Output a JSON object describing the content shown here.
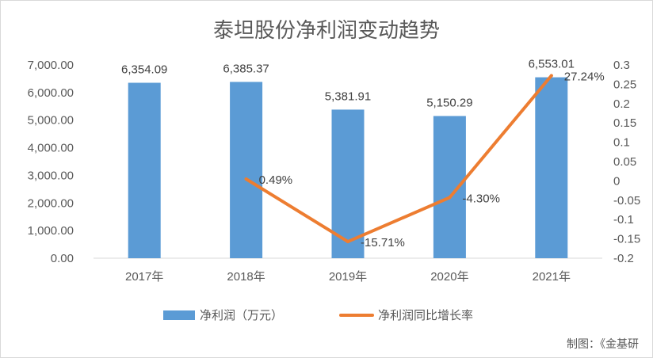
{
  "chart_data": {
    "type": "bar",
    "title": "泰坦股份净利润变动趋势",
    "categories": [
      "2017年",
      "2018年",
      "2019年",
      "2020年",
      "2021年"
    ],
    "series": [
      {
        "name": "净利润（万元）",
        "type": "bar",
        "axis": "left",
        "values": [
          6354.09,
          6385.37,
          5381.91,
          5150.29,
          6553.01
        ],
        "labels": [
          "6,354.09",
          "6,385.37",
          "5,381.91",
          "5,150.29",
          "6,553.01"
        ],
        "color": "#5b9bd5"
      },
      {
        "name": "净利润同比增长率",
        "type": "line",
        "axis": "right",
        "values": [
          null,
          0.0049,
          -0.1571,
          -0.043,
          0.2724
        ],
        "labels": [
          "",
          "0.49%",
          "-15.71%",
          "-4.30%",
          "27.24%"
        ],
        "color": "#ed7d31"
      }
    ],
    "y_left": {
      "range": [
        0,
        7000
      ],
      "ticks": [
        0,
        1000,
        2000,
        3000,
        4000,
        5000,
        6000,
        7000
      ],
      "tick_labels": [
        "0.00",
        "1,000.00",
        "2,000.00",
        "3,000.00",
        "4,000.00",
        "5,000.00",
        "6,000.00",
        "7,000.00"
      ]
    },
    "y_right": {
      "range": [
        -0.2,
        0.3
      ],
      "ticks": [
        -0.2,
        -0.15,
        -0.1,
        -0.05,
        0,
        0.05,
        0.1,
        0.15,
        0.2,
        0.25,
        0.3
      ],
      "tick_labels": [
        "-0.2",
        "-0.15",
        "-0.1",
        "-0.05",
        "0",
        "0.05",
        "0.1",
        "0.15",
        "0.2",
        "0.25",
        "0.3"
      ]
    },
    "grid": false,
    "legend_position": "bottom"
  },
  "credit": "制图：《金基研"
}
